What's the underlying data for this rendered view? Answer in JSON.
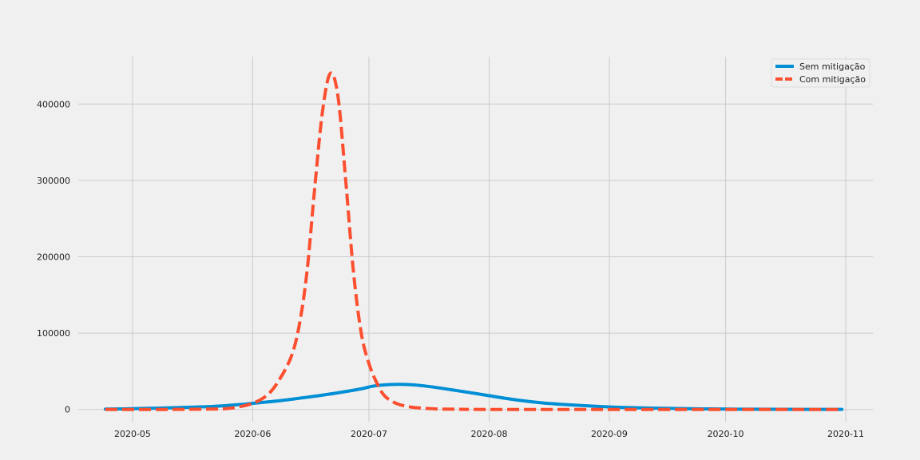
{
  "chart_data": {
    "type": "line",
    "title": "",
    "xlabel": "",
    "ylabel": "",
    "x_axis": {
      "type": "date",
      "range": [
        "2020-04-17",
        "2020-11-08"
      ],
      "ticks": [
        "2020-05-01",
        "2020-06-01",
        "2020-07-01",
        "2020-08-01",
        "2020-09-01",
        "2020-10-01",
        "2020-11-01"
      ],
      "tick_labels": [
        "2020-05",
        "2020-06",
        "2020-07",
        "2020-08",
        "2020-09",
        "2020-10",
        "2020-11"
      ]
    },
    "y_axis": {
      "range": [
        -16000,
        462000
      ],
      "ticks": [
        0,
        100000,
        200000,
        300000,
        400000
      ],
      "tick_labels": [
        "0",
        "100000",
        "200000",
        "300000",
        "400000"
      ]
    },
    "grid": true,
    "legend": {
      "position": "top-right"
    },
    "series": [
      {
        "name": "Sem mitigação",
        "color": "#008fd5",
        "style": "solid",
        "points": [
          [
            "2020-04-24",
            500
          ],
          [
            "2020-05-01",
            1000
          ],
          [
            "2020-05-08",
            1800
          ],
          [
            "2020-05-15",
            2800
          ],
          [
            "2020-05-22",
            4000
          ],
          [
            "2020-05-29",
            6500
          ],
          [
            "2020-06-01",
            8000
          ],
          [
            "2020-06-08",
            11500
          ],
          [
            "2020-06-15",
            16000
          ],
          [
            "2020-06-22",
            21000
          ],
          [
            "2020-06-29",
            27000
          ],
          [
            "2020-07-02",
            30500
          ],
          [
            "2020-07-06",
            32500
          ],
          [
            "2020-07-10",
            32800
          ],
          [
            "2020-07-15",
            31000
          ],
          [
            "2020-07-22",
            26000
          ],
          [
            "2020-07-29",
            20500
          ],
          [
            "2020-08-01",
            18000
          ],
          [
            "2020-08-08",
            12500
          ],
          [
            "2020-08-15",
            8500
          ],
          [
            "2020-08-22",
            6000
          ],
          [
            "2020-08-29",
            4000
          ],
          [
            "2020-09-05",
            2500
          ],
          [
            "2020-09-15",
            1500
          ],
          [
            "2020-09-25",
            800
          ],
          [
            "2020-10-05",
            400
          ],
          [
            "2020-10-15",
            200
          ],
          [
            "2020-10-31",
            100
          ]
        ]
      },
      {
        "name": "Com mitigação",
        "color": "#fc4f30",
        "style": "dashed",
        "points": [
          [
            "2020-04-24",
            0
          ],
          [
            "2020-05-10",
            0
          ],
          [
            "2020-05-20",
            500
          ],
          [
            "2020-05-26",
            1500
          ],
          [
            "2020-06-01",
            8000
          ],
          [
            "2020-06-05",
            20000
          ],
          [
            "2020-06-08",
            40000
          ],
          [
            "2020-06-11",
            70000
          ],
          [
            "2020-06-13",
            110000
          ],
          [
            "2020-06-15",
            180000
          ],
          [
            "2020-06-17",
            290000
          ],
          [
            "2020-06-19",
            390000
          ],
          [
            "2020-06-21",
            440000
          ],
          [
            "2020-06-23",
            410000
          ],
          [
            "2020-06-25",
            300000
          ],
          [
            "2020-06-27",
            180000
          ],
          [
            "2020-06-29",
            100000
          ],
          [
            "2020-07-01",
            60000
          ],
          [
            "2020-07-03",
            35000
          ],
          [
            "2020-07-05",
            18000
          ],
          [
            "2020-07-08",
            8000
          ],
          [
            "2020-07-12",
            3000
          ],
          [
            "2020-07-18",
            800
          ],
          [
            "2020-07-25",
            200
          ],
          [
            "2020-08-05",
            0
          ],
          [
            "2020-10-31",
            0
          ]
        ]
      }
    ]
  }
}
